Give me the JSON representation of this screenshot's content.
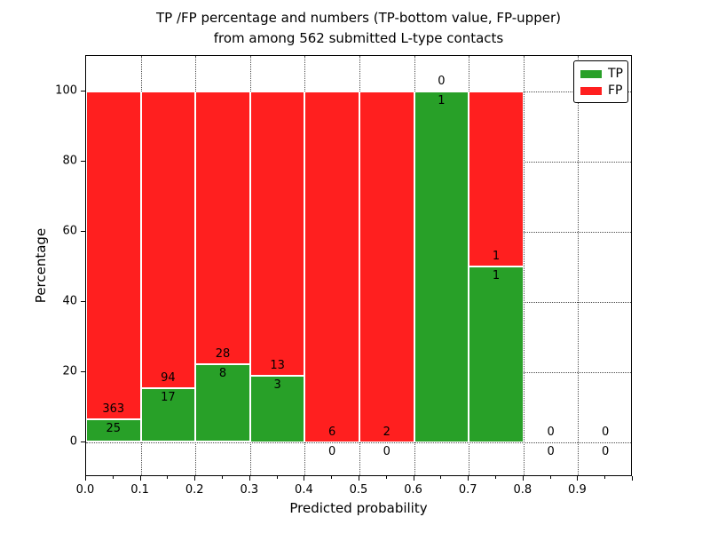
{
  "chart_data": {
    "type": "bar",
    "stacked": true,
    "title_line1": "TP /FP percentage and numbers (TP-bottom value, FP-upper)",
    "title_line2": "from among 562 submitted L-type contacts",
    "xlabel": "Predicted probability",
    "ylabel": "Percentage",
    "xlim": [
      0.0,
      1.0
    ],
    "ylim": [
      -10,
      110
    ],
    "grid": "dotted",
    "xticks": [
      {
        "v": 0.0,
        "label": "0.0"
      },
      {
        "v": 0.1,
        "label": "0.1"
      },
      {
        "v": 0.2,
        "label": "0.2"
      },
      {
        "v": 0.3,
        "label": "0.3"
      },
      {
        "v": 0.4,
        "label": "0.4"
      },
      {
        "v": 0.5,
        "label": "0.5"
      },
      {
        "v": 0.6,
        "label": "0.6"
      },
      {
        "v": 0.7,
        "label": "0.7"
      },
      {
        "v": 0.8,
        "label": "0.8"
      },
      {
        "v": 0.9,
        "label": "0.9"
      },
      {
        "v": 1.0,
        "label": ""
      }
    ],
    "xminor_ticks": [
      0.05,
      0.15,
      0.25,
      0.35,
      0.45,
      0.55,
      0.65,
      0.75,
      0.85,
      0.95
    ],
    "yticks": [
      {
        "v": 0,
        "label": "0"
      },
      {
        "v": 20,
        "label": "20"
      },
      {
        "v": 40,
        "label": "40"
      },
      {
        "v": 60,
        "label": "60"
      },
      {
        "v": 80,
        "label": "80"
      },
      {
        "v": 100,
        "label": "100"
      }
    ],
    "series": [
      {
        "name": "TP",
        "color": "#28a028"
      },
      {
        "name": "FP",
        "color": "#ff1f1f"
      }
    ],
    "bar_edge_color": "#ffffff",
    "legend_position": "upper-right",
    "bins": [
      {
        "x0": 0.0,
        "x1": 0.1,
        "tp": 25,
        "fp": 363
      },
      {
        "x0": 0.1,
        "x1": 0.2,
        "tp": 17,
        "fp": 94
      },
      {
        "x0": 0.2,
        "x1": 0.3,
        "tp": 8,
        "fp": 28
      },
      {
        "x0": 0.3,
        "x1": 0.4,
        "tp": 3,
        "fp": 13
      },
      {
        "x0": 0.4,
        "x1": 0.5,
        "tp": 0,
        "fp": 6
      },
      {
        "x0": 0.5,
        "x1": 0.6,
        "tp": 0,
        "fp": 2
      },
      {
        "x0": 0.6,
        "x1": 0.7,
        "tp": 1,
        "fp": 0
      },
      {
        "x0": 0.7,
        "x1": 0.8,
        "tp": 1,
        "fp": 1
      },
      {
        "x0": 0.8,
        "x1": 0.9,
        "tp": 0,
        "fp": 0
      },
      {
        "x0": 0.9,
        "x1": 1.0,
        "tp": 0,
        "fp": 0
      }
    ]
  }
}
